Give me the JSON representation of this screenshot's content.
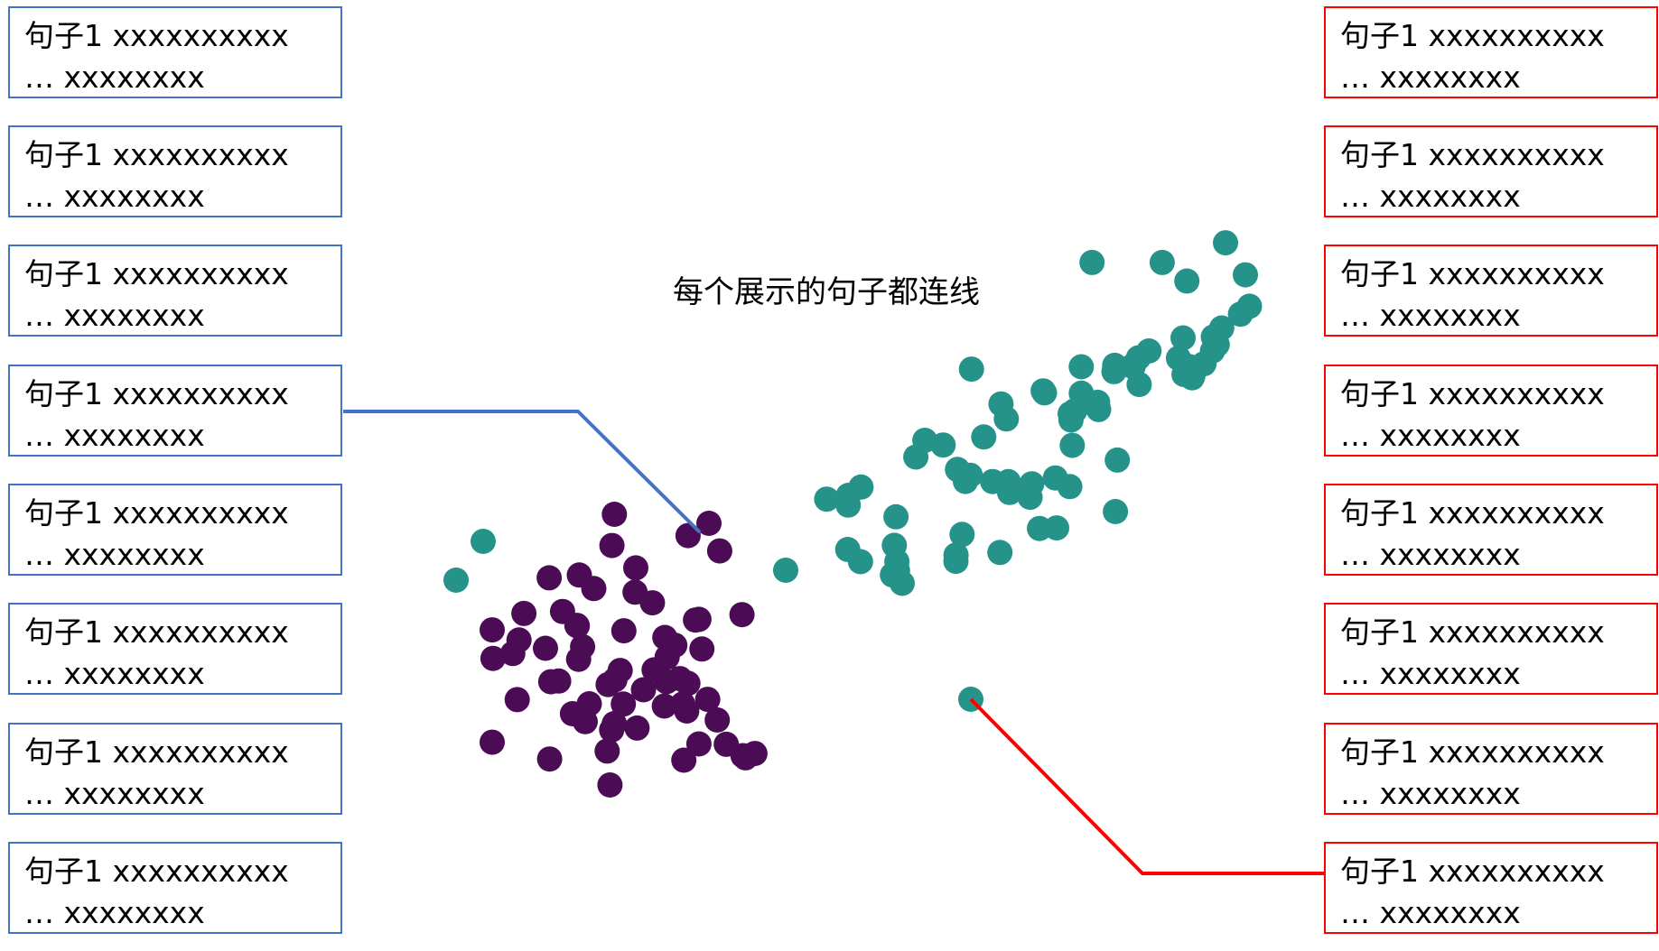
{
  "note": "每个展示的句子都连线",
  "box_text": {
    "line1": "句子1 xxxxxxxxxx",
    "line2": "… xxxxxxxx"
  },
  "left_boxes": [
    1,
    2,
    3,
    4,
    5,
    6,
    7,
    8
  ],
  "right_boxes": [
    1,
    2,
    3,
    4,
    5,
    6,
    7,
    8
  ],
  "colors": {
    "left_border": "#4472C4",
    "right_border": "#FF0000",
    "cluster_teal": "#26938A",
    "cluster_purple": "#4B0C55",
    "connector_blue": "#4472C4",
    "connector_red": "#FF0000"
  },
  "clusters": {
    "purple_count": 62,
    "teal_count": 72
  }
}
